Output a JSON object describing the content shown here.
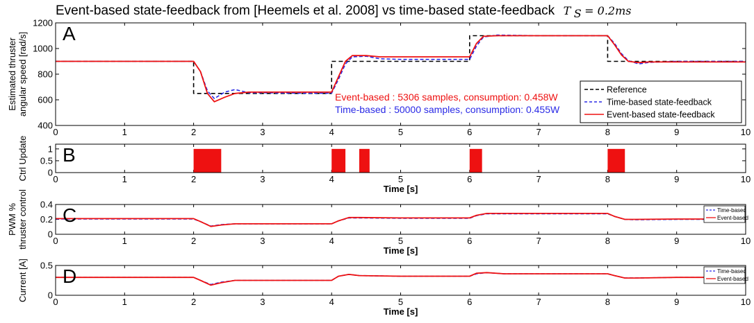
{
  "title": {
    "text": "Event-based state-feedback from [Heemels et al. 2008] vs time-based state-feedback",
    "math_symbol": "T",
    "math_sub": "S",
    "math_rest": " = 0.2ms"
  },
  "colors": {
    "reference": "#000000",
    "time_based": "#2a2ae6",
    "event_based": "#ee1111",
    "axes": "#000000"
  },
  "chart_data": [
    {
      "panel": "A",
      "type": "line",
      "ylabel_lines": [
        "Estimated thruster",
        "angular speed [rad/s]"
      ],
      "xlabel": "",
      "xlim": [
        0,
        10
      ],
      "ylim": [
        400,
        1200
      ],
      "xticks": [
        0,
        1,
        2,
        3,
        4,
        5,
        6,
        7,
        8,
        9,
        10
      ],
      "yticks": [
        400,
        600,
        800,
        1000,
        1200
      ],
      "legend": {
        "placement": "bottom-right",
        "entries": [
          "Reference",
          "Time-based state-feedback",
          "Event-based state-feedback"
        ]
      },
      "annotations": [
        {
          "text": "Event-based : 5306 samples, consumption: 0.458W",
          "color": "event_based"
        },
        {
          "text": "Time-based : 50000 samples, consumption: 0.455W",
          "color": "time_based"
        }
      ],
      "series": [
        {
          "name": "Reference",
          "style": "dashed",
          "color": "reference",
          "x": [
            0,
            2,
            2,
            4,
            4,
            6,
            6,
            8,
            8,
            10
          ],
          "y": [
            900,
            900,
            650,
            650,
            900,
            900,
            1100,
            1100,
            900,
            900
          ]
        },
        {
          "name": "Time-based state-feedback",
          "style": "dashed",
          "color": "time_based",
          "x": [
            0,
            2,
            2.1,
            2.2,
            2.3,
            2.45,
            2.6,
            2.8,
            3,
            3.5,
            4,
            4.1,
            4.2,
            4.3,
            4.5,
            4.7,
            5,
            5.5,
            6,
            6.1,
            6.2,
            6.4,
            7,
            8,
            8.1,
            8.2,
            8.3,
            8.45,
            8.6,
            9,
            10
          ],
          "y": [
            900,
            900,
            820,
            670,
            610,
            660,
            680,
            655,
            655,
            652,
            652,
            760,
            880,
            935,
            940,
            920,
            915,
            915,
            915,
            1020,
            1090,
            1105,
            1100,
            1100,
            1040,
            960,
            905,
            880,
            892,
            900,
            900
          ]
        },
        {
          "name": "Event-based state-feedback",
          "style": "solid",
          "color": "event_based",
          "x": [
            0,
            2,
            2.1,
            2.2,
            2.3,
            2.45,
            2.6,
            2.8,
            3,
            3.5,
            4,
            4.1,
            4.2,
            4.3,
            4.5,
            4.7,
            5,
            5.5,
            6,
            6.1,
            6.2,
            6.4,
            7,
            8,
            8.1,
            8.2,
            8.3,
            8.45,
            8.6,
            9,
            10
          ],
          "y": [
            900,
            900,
            820,
            650,
            585,
            620,
            650,
            660,
            660,
            660,
            660,
            780,
            900,
            945,
            945,
            935,
            935,
            935,
            935,
            1040,
            1095,
            1100,
            1100,
            1100,
            1030,
            950,
            900,
            890,
            895,
            895,
            895
          ]
        }
      ]
    },
    {
      "panel": "B",
      "type": "bar",
      "ylabel_lines": [
        "Ctrl Update"
      ],
      "xlabel": "Time [s]",
      "xlim": [
        0,
        10
      ],
      "ylim": [
        0,
        1.2
      ],
      "xticks": [
        0,
        1,
        2,
        3,
        4,
        5,
        6,
        7,
        8,
        9,
        10
      ],
      "yticks": [
        0,
        0.5,
        1
      ],
      "ytick_labels": [
        "0",
        "0.5",
        "1"
      ],
      "intervals": [
        {
          "start": 2.0,
          "end": 2.4,
          "value": 1
        },
        {
          "start": 4.0,
          "end": 4.2,
          "value": 1
        },
        {
          "start": 4.4,
          "end": 4.55,
          "value": 1
        },
        {
          "start": 6.0,
          "end": 6.18,
          "value": 1
        },
        {
          "start": 8.0,
          "end": 8.25,
          "value": 1
        }
      ]
    },
    {
      "panel": "C",
      "type": "line",
      "ylabel_lines": [
        "PWM %",
        "thruster control"
      ],
      "xlabel": "Time [s]",
      "xlim": [
        0,
        10
      ],
      "ylim": [
        0,
        0.4
      ],
      "xticks": [
        0,
        1,
        2,
        3,
        4,
        5,
        6,
        7,
        8,
        9,
        10
      ],
      "yticks": [
        0,
        0.2,
        0.4
      ],
      "ytick_labels": [
        "0",
        "0.2",
        "0.4"
      ],
      "legend": {
        "placement": "top-right",
        "entries": [
          "Time-based",
          "Event-based"
        ]
      },
      "series": [
        {
          "name": "Time-based",
          "style": "dashed",
          "color": "time_based",
          "x": [
            0,
            2,
            2.1,
            2.25,
            2.4,
            2.6,
            3,
            4,
            4.1,
            4.25,
            4.4,
            5,
            6,
            6.1,
            6.25,
            7,
            8,
            8.1,
            8.25,
            8.4,
            9,
            10
          ],
          "y": [
            0.205,
            0.205,
            0.17,
            0.11,
            0.13,
            0.14,
            0.14,
            0.14,
            0.18,
            0.22,
            0.22,
            0.215,
            0.215,
            0.25,
            0.275,
            0.275,
            0.275,
            0.24,
            0.2,
            0.195,
            0.2,
            0.2
          ]
        },
        {
          "name": "Event-based",
          "style": "solid",
          "color": "event_based",
          "x": [
            0,
            2,
            2.1,
            2.25,
            2.4,
            2.6,
            3,
            4,
            4.1,
            4.25,
            4.4,
            5,
            6,
            6.1,
            6.25,
            7,
            8,
            8.1,
            8.25,
            8.4,
            9,
            10
          ],
          "y": [
            0.21,
            0.21,
            0.17,
            0.105,
            0.125,
            0.14,
            0.14,
            0.14,
            0.18,
            0.225,
            0.225,
            0.22,
            0.22,
            0.255,
            0.28,
            0.28,
            0.28,
            0.24,
            0.2,
            0.2,
            0.205,
            0.205
          ]
        }
      ]
    },
    {
      "panel": "D",
      "type": "line",
      "ylabel_lines": [
        "Current [A]"
      ],
      "xlabel": "Time [s]",
      "xlim": [
        0,
        10
      ],
      "ylim": [
        0,
        0.5
      ],
      "xticks": [
        0,
        1,
        2,
        3,
        4,
        5,
        6,
        7,
        8,
        9,
        10
      ],
      "yticks": [
        0,
        0.5
      ],
      "ytick_labels": [
        "0",
        "0.5"
      ],
      "legend": {
        "placement": "top-right",
        "entries": [
          "Time-based",
          "Event-based"
        ]
      },
      "series": [
        {
          "name": "Time-based",
          "style": "dashed",
          "color": "time_based",
          "x": [
            0,
            2,
            2.1,
            2.25,
            2.4,
            2.6,
            3,
            4,
            4.1,
            4.25,
            4.4,
            5,
            6,
            6.1,
            6.25,
            6.5,
            7,
            8,
            8.1,
            8.25,
            8.4,
            9,
            10
          ],
          "y": [
            0.3,
            0.3,
            0.25,
            0.18,
            0.22,
            0.25,
            0.25,
            0.25,
            0.32,
            0.35,
            0.33,
            0.32,
            0.32,
            0.36,
            0.38,
            0.36,
            0.36,
            0.36,
            0.33,
            0.29,
            0.29,
            0.3,
            0.3
          ]
        },
        {
          "name": "Event-based",
          "style": "solid",
          "color": "event_based",
          "x": [
            0,
            2,
            2.1,
            2.25,
            2.4,
            2.6,
            3,
            4,
            4.1,
            4.25,
            4.4,
            5,
            6,
            6.1,
            6.25,
            6.5,
            7,
            8,
            8.1,
            8.25,
            8.4,
            9,
            10
          ],
          "y": [
            0.3,
            0.3,
            0.25,
            0.17,
            0.21,
            0.25,
            0.25,
            0.25,
            0.32,
            0.35,
            0.33,
            0.32,
            0.32,
            0.37,
            0.38,
            0.36,
            0.36,
            0.36,
            0.33,
            0.29,
            0.29,
            0.3,
            0.3
          ]
        }
      ]
    }
  ]
}
